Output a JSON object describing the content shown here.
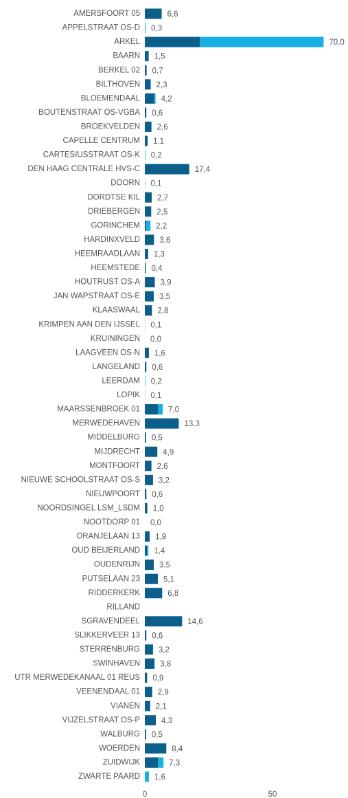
{
  "chart_data": {
    "type": "stacked_barh",
    "categories": [
      "AMERSFOORT 05",
      "APPELSTRAAT OS-D",
      "ARKEL",
      "BAARN",
      "BERKEL 02",
      "BILTHOVEN",
      "BLOEMENDAAL",
      "BOUTENSTRAAT OS-VGBA",
      "BROEKVELDEN",
      "CAPELLE CENTRUM",
      "CARTESIUSSTRAAT OS-K",
      "DEN HAAG CENTRALE HVS-C",
      "DOORN",
      "DORDTSE KIL",
      "DRIEBERGEN",
      "GORINCHEM",
      "HARDINXVELD",
      "HEEMRAADLAAN",
      "HEEMSTEDE",
      "HOUTRUST OS-A",
      "JAN WAPSTRAAT OS-E",
      "KLAASWAAL",
      "KRIMPEN AAN DEN IJSSEL",
      "KRUININGEN",
      "LAAGVEEN OS-N",
      "LANGELAND",
      "LEERDAM",
      "LOPIK",
      "MAARSSENBROEK 01",
      "MERWEDEHAVEN",
      "MIDDELBURG",
      "MIJDRECHT",
      "MONTFOORT",
      "NIEUWE SCHOOLSTRAAT OS-S",
      "NIEUWPOORT",
      "NOORDSINGEL LSM_LSDM",
      "NOOTDORP 01",
      "ORANJELAAN 13",
      "OUD BEIJERLAND",
      "OUDENRIJN",
      "PUTSELAAN 23",
      "RIDDERKERK",
      "RILLAND",
      "SGRAVENDEEL",
      "SLIKKERVEER 13",
      "STERRENBURG",
      "SWINHAVEN",
      "UTR MERWEDEKANAAL 01 REUS",
      "VEENENDAAL 01",
      "VIANEN",
      "VIJZELSTRAAT OS-P",
      "WALBURG",
      "WOERDEN",
      "ZUIDWIJK",
      "ZWARTE PAARD"
    ],
    "series": [
      {
        "color": "#0b5f8a",
        "values": [
          6.6,
          0,
          21.5,
          1.5,
          0.7,
          2.3,
          3.7,
          0.6,
          2.6,
          1.1,
          0,
          17.4,
          0,
          2.7,
          2.5,
          0.6,
          3.6,
          1.3,
          0.4,
          3.9,
          3.5,
          2.8,
          0,
          0,
          1.6,
          0.6,
          0,
          0,
          5.2,
          13.3,
          0.5,
          4.9,
          2.6,
          3.2,
          0.6,
          1.0,
          0,
          1.9,
          0.9,
          3.5,
          5.1,
          6.8,
          null,
          14.6,
          0.6,
          3.2,
          3.8,
          0.9,
          2.9,
          2.1,
          4.3,
          0.5,
          8.4,
          5.2,
          0
        ]
      },
      {
        "color": "#17b0e3",
        "values": [
          0,
          0.3,
          48.5,
          0,
          0,
          0,
          0.5,
          0,
          0,
          0,
          0.2,
          0,
          0.1,
          0,
          0,
          1.6,
          0,
          0,
          0,
          0,
          0,
          0,
          0.1,
          0,
          0,
          0,
          0.2,
          0.1,
          1.8,
          0,
          0,
          0,
          0,
          0,
          0,
          0,
          0,
          0,
          0.5,
          0,
          0,
          0,
          null,
          0,
          0,
          0,
          0,
          0,
          0,
          0,
          0,
          0,
          0,
          2.1,
          1.6
        ]
      }
    ],
    "value_labels": [
      "6,6",
      "0,3",
      "70,0",
      "1,5",
      "0,7",
      "2,3",
      "4,2",
      "0,6",
      "2,6",
      "1,1",
      "0,2",
      "17,4",
      "0,1",
      "2,7",
      "2,5",
      "2,2",
      "3,6",
      "1,3",
      "0,4",
      "3,9",
      "3,5",
      "2,8",
      "0,1",
      "0,0",
      "1,6",
      "0,6",
      "0,2",
      "0,1",
      "7,0",
      "13,3",
      "0,5",
      "4,9",
      "2,6",
      "3,2",
      "0,6",
      "1,0",
      "0,0",
      "1,9",
      "1,4",
      "3,5",
      "5,1",
      "6,8",
      null,
      "14,6",
      "0,6",
      "3,2",
      "3,8",
      "0,9",
      "2,9",
      "2,1",
      "4,3",
      "0,5",
      "8,4",
      "7,3",
      "1,6"
    ],
    "xlim": [
      0,
      75
    ],
    "xticks": [
      0,
      50
    ]
  }
}
